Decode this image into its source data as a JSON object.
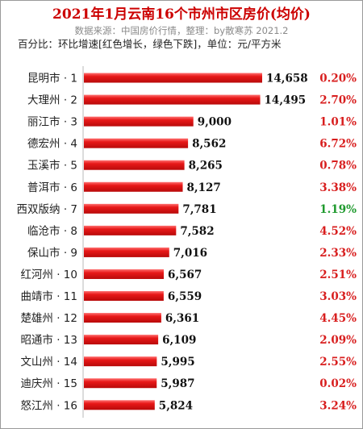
{
  "header": {
    "title": "2021年1月云南16个市州市区房价(均价)",
    "source": "数据来源：中国房价行情，整理：by散寒苏 2021.2",
    "legend": "百分比：环比增速[红色增长，绿色下跌]，单位：元/平方米"
  },
  "colors": {
    "bar": "#e81818",
    "increase": "#d81e1e",
    "decrease": "#1f9a2e",
    "title": "#cc0000"
  },
  "chart_data": {
    "type": "bar",
    "orientation": "horizontal",
    "categories": [
      "昆明市 · 1",
      "大理州 · 2",
      "丽江市 · 3",
      "德宏州 · 4",
      "玉溪市 · 5",
      "普洱市 · 6",
      "西双版纳 · 7",
      "临沧市 · 8",
      "保山市 · 9",
      "红河州 · 10",
      "曲靖市 · 11",
      "楚雄州 · 12",
      "昭通市 · 13",
      "文山州 · 14",
      "迪庆州 · 15",
      "怒江州 · 16"
    ],
    "values": [
      14658,
      14495,
      9000,
      8562,
      8265,
      8127,
      7781,
      7582,
      7016,
      6567,
      6559,
      6361,
      6109,
      5995,
      5987,
      5824
    ],
    "value_labels": [
      "14,658",
      "14,495",
      "9,000",
      "8,562",
      "8,265",
      "8,127",
      "7,781",
      "7,582",
      "7,016",
      "6,567",
      "6,559",
      "6,361",
      "6,109",
      "5,995",
      "5,987",
      "5,824"
    ],
    "pct_labels": [
      "0.20%",
      "2.70%",
      "1.01%",
      "6.72%",
      "0.78%",
      "3.38%",
      "1.19%",
      "4.52%",
      "2.33%",
      "2.51%",
      "3.03%",
      "4.45%",
      "2.09%",
      "2.55%",
      "0.02%",
      "3.24%"
    ],
    "pct_trend": [
      "up",
      "up",
      "up",
      "up",
      "up",
      "up",
      "down",
      "up",
      "up",
      "up",
      "up",
      "up",
      "up",
      "up",
      "up",
      "up"
    ],
    "xlim": [
      0,
      14658
    ]
  }
}
